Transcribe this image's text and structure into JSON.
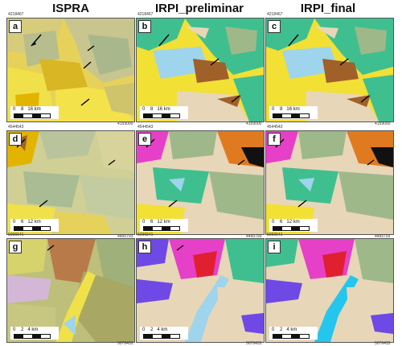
{
  "columns": [
    {
      "title": "ISPRA"
    },
    {
      "title": "IRPI_preliminar"
    },
    {
      "title": "IRPI_final"
    }
  ],
  "panels": [
    {
      "label": "a",
      "coord_top": "4218467",
      "coord_left": "4218467",
      "coord_br": "4159000",
      "scale": {
        "t0": "0",
        "t1": "8",
        "t2": "16 km"
      }
    },
    {
      "label": "b",
      "coord_top": "4218467",
      "coord_left": "4218467",
      "coord_br": "4159000",
      "scale": {
        "t0": "0",
        "t1": "8",
        "t2": "16 km"
      }
    },
    {
      "label": "c",
      "coord_top": "4218467",
      "coord_left": "4218467",
      "coord_br": "4159000",
      "scale": {
        "t0": "0",
        "t1": "8",
        "t2": "16 km"
      }
    },
    {
      "label": "d",
      "coord_top": "4544543",
      "coord_left": "4544543",
      "coord_br": "4495793",
      "scale": {
        "t0": "0",
        "t1": "6",
        "t2": "12 km"
      }
    },
    {
      "label": "e",
      "coord_top": "4544543",
      "coord_left": "4544543",
      "coord_br": "4495793",
      "scale": {
        "t0": "0",
        "t1": "6",
        "t2": "12 km"
      }
    },
    {
      "label": "f",
      "coord_top": "4544543",
      "coord_left": "4544543",
      "coord_br": "4495793",
      "scale": {
        "t0": "0",
        "t1": "6",
        "t2": "12 km"
      }
    },
    {
      "label": "g",
      "coord_top": "5096541",
      "coord_left": "5096541",
      "coord_br": "5076433",
      "scale": {
        "t0": "0",
        "t1": "2",
        "t2": "4 km"
      }
    },
    {
      "label": "h",
      "coord_top": "5096541",
      "coord_left": "5096541",
      "coord_br": "5076433",
      "scale": {
        "t0": "0",
        "t1": "2",
        "t2": "4 km"
      }
    },
    {
      "label": "i",
      "coord_top": "5096541",
      "coord_left": "5096541",
      "coord_br": "5076433",
      "scale": {
        "t0": "0",
        "t1": "2",
        "t2": "4 km"
      }
    }
  ],
  "palette": {
    "yellow": "#f2e035",
    "gold": "#e2b400",
    "green": "#3fbf8f",
    "blue": "#9ed4ec",
    "beige": "#e8d6b8",
    "olive": "#b9b46a",
    "sage": "#9fb88a",
    "brown": "#a0602a",
    "magenta": "#e640c8",
    "purple": "#6f49e6",
    "red": "#e02030",
    "cyan": "#24c6ee"
  }
}
